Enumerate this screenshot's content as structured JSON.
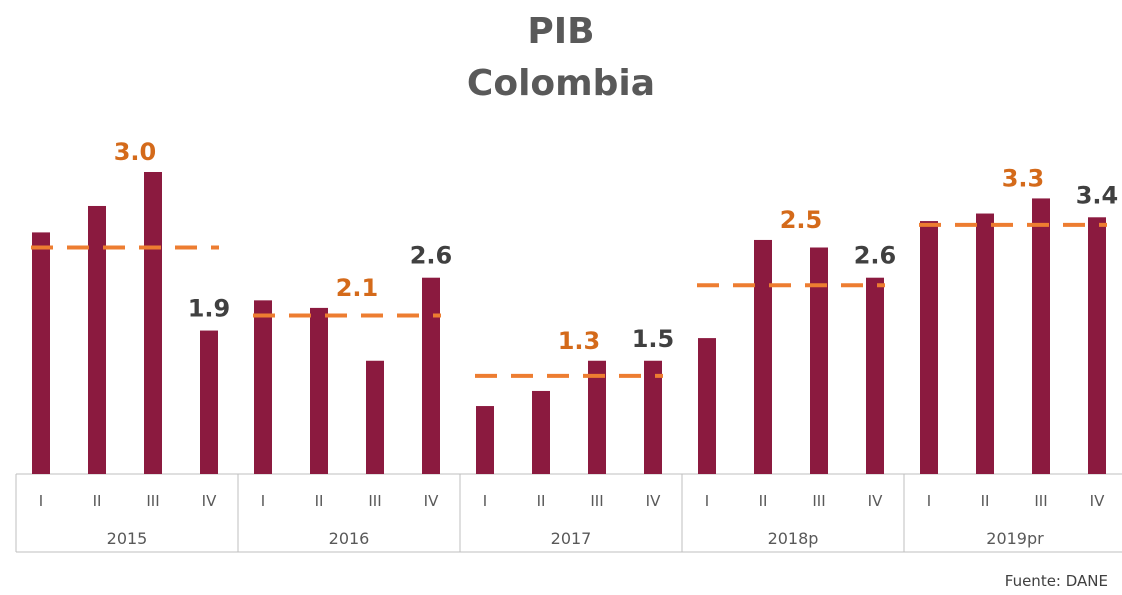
{
  "title_lines": [
    "PIB",
    "Colombia"
  ],
  "source": "Fuente: DANE",
  "colors": {
    "bar": "#8B1A3F",
    "average": "#ED7D31",
    "highlight_label": "#D46A1A",
    "label": "#404040",
    "axis": "#bfbfbf"
  },
  "chart_data": {
    "type": "bar",
    "title": "PIB Colombia",
    "ylim": [
      0,
      4
    ],
    "groups": [
      {
        "year": "2015",
        "average": 3.0,
        "average_label": "3.0",
        "quarters": [
          {
            "q": "I",
            "value": 3.2,
            "label": ""
          },
          {
            "q": "II",
            "value": 3.55,
            "label": ""
          },
          {
            "q": "III",
            "value": 4.0,
            "label": ""
          },
          {
            "q": "IV",
            "value": 1.9,
            "label": "1.9"
          }
        ]
      },
      {
        "year": "2016",
        "average": 2.1,
        "average_label": "2.1",
        "quarters": [
          {
            "q": "I",
            "value": 2.3,
            "label": ""
          },
          {
            "q": "II",
            "value": 2.2,
            "label": ""
          },
          {
            "q": "III",
            "value": 1.5,
            "label": ""
          },
          {
            "q": "IV",
            "value": 2.6,
            "label": "2.6"
          }
        ]
      },
      {
        "year": "2017",
        "average": 1.3,
        "average_label": "1.3",
        "quarters": [
          {
            "q": "I",
            "value": 0.9,
            "label": ""
          },
          {
            "q": "II",
            "value": 1.1,
            "label": ""
          },
          {
            "q": "III",
            "value": 1.5,
            "label": ""
          },
          {
            "q": "IV",
            "value": 1.5,
            "label": "1.5"
          }
        ]
      },
      {
        "year": "2018p",
        "average": 2.5,
        "average_label": "2.5",
        "quarters": [
          {
            "q": "I",
            "value": 1.8,
            "label": ""
          },
          {
            "q": "II",
            "value": 3.1,
            "label": ""
          },
          {
            "q": "III",
            "value": 3.0,
            "label": ""
          },
          {
            "q": "IV",
            "value": 2.6,
            "label": "2.6"
          }
        ]
      },
      {
        "year": "2019pr",
        "average": 3.3,
        "average_label": "3.3",
        "quarters": [
          {
            "q": "I",
            "value": 3.35,
            "label": ""
          },
          {
            "q": "II",
            "value": 3.45,
            "label": ""
          },
          {
            "q": "III",
            "value": 3.65,
            "label": ""
          },
          {
            "q": "IV",
            "value": 3.4,
            "label": "3.4"
          }
        ]
      }
    ]
  }
}
